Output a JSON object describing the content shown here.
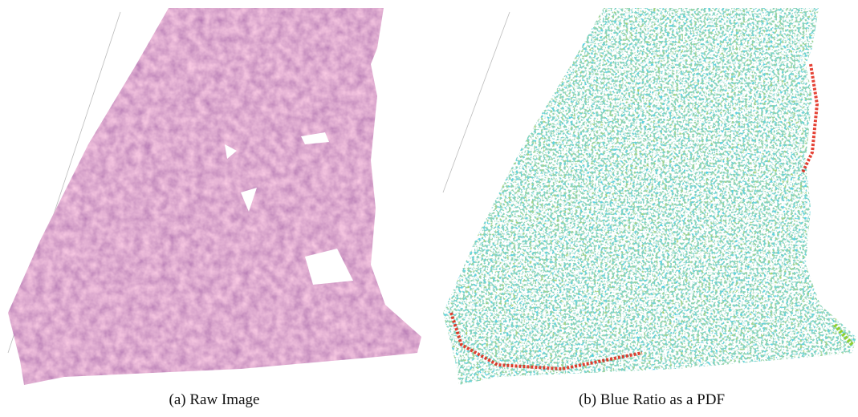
{
  "figure": {
    "panels": [
      {
        "caption": "(a) Raw Image"
      },
      {
        "caption": "(b) Blue Ratio as a PDF"
      }
    ]
  }
}
